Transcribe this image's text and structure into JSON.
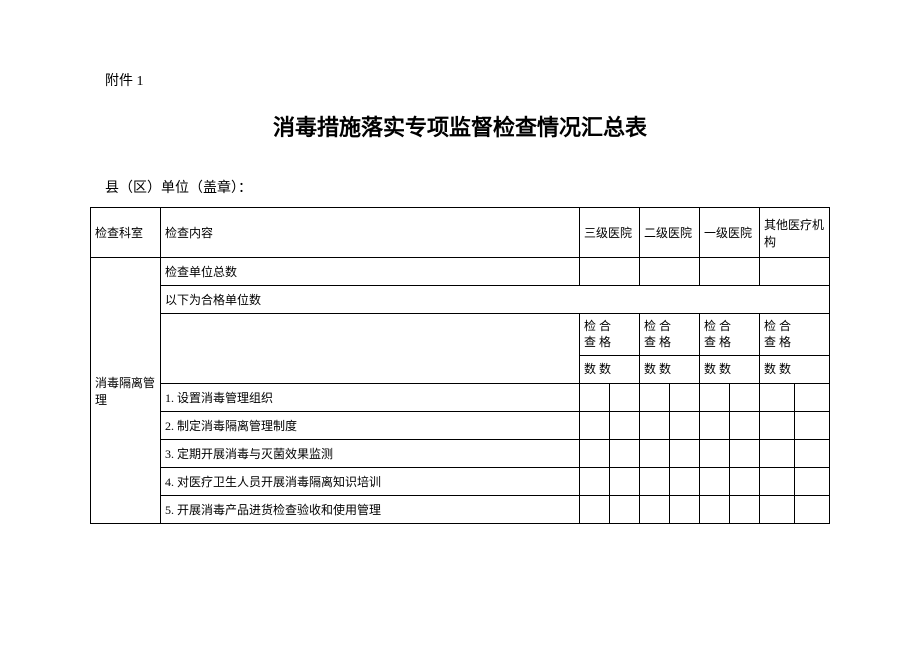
{
  "appendix_label": "附件 1",
  "main_title": "消毒措施落实专项监督检查情况汇总表",
  "subtitle": "县（区）单位（盖章）：",
  "header": {
    "dept": "检查科室",
    "content": "检查内容",
    "h1": "三级医院",
    "h2": "二级医院",
    "h3": "一级医院",
    "h4": "其他医疗机构"
  },
  "section_label": "消毒隔离管理",
  "row_total": "检查单位总数",
  "row_qualified": "以下为合格单位数",
  "subhead": {
    "check_qualified_line1": "检 合",
    "check_qualified_line2": "查 格",
    "count_count": "数 数"
  },
  "items": {
    "i1": "1. 设置消毒管理组织",
    "i2": "2. 制定消毒隔离管理制度",
    "i3": "3. 定期开展消毒与灭菌效果监测",
    "i4": "4. 对医疗卫生人员开展消毒隔离知识培训",
    "i5": "5. 开展消毒产品进货检查验收和使用管理"
  },
  "colors": {
    "text": "#000000",
    "border": "#000000",
    "background": "#ffffff"
  },
  "fonts": {
    "title_size": 22,
    "body_size": 12,
    "label_size": 14
  }
}
